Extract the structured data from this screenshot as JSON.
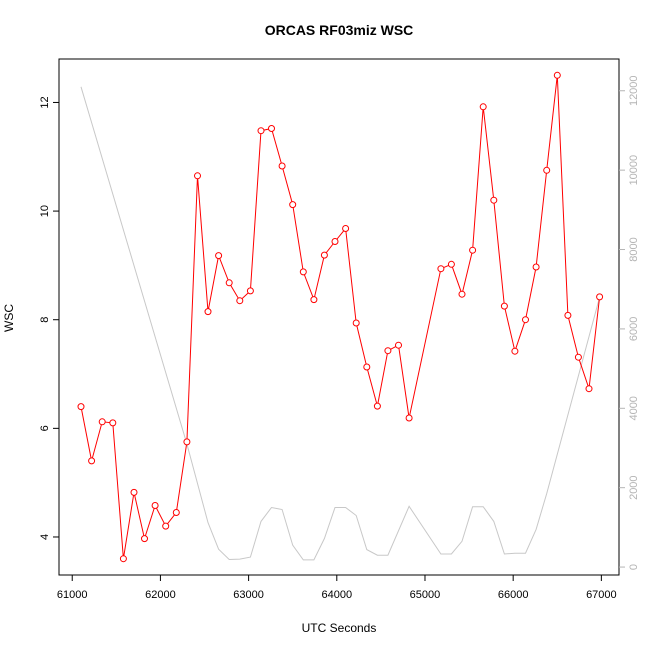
{
  "chart_data": {
    "type": "line",
    "title": "ORCAS RF03miz WSC",
    "xlabel": "UTC Seconds",
    "ylabel": "WSC",
    "xlim": [
      60850,
      67200
    ],
    "ylim": [
      3.3,
      12.8
    ],
    "y2lim": [
      -200,
      12800
    ],
    "x_ticks": [
      61000,
      62000,
      63000,
      64000,
      65000,
      66000,
      67000
    ],
    "y_ticks": [
      4,
      6,
      8,
      10,
      12
    ],
    "y2_ticks": [
      0,
      2000,
      4000,
      6000,
      8000,
      10000,
      12000
    ],
    "grid": false,
    "colors": {
      "primary": "#ff0000",
      "secondary": "#c8c8c8",
      "right_axis": "#b4b4b4"
    },
    "series": [
      {
        "axis": "left",
        "style": "line+points",
        "x": [
          61100,
          61220,
          61340,
          61460,
          61580,
          61700,
          61820,
          61940,
          62060,
          62180,
          62300,
          62420,
          62540,
          62660,
          62780,
          62900,
          63020,
          63140,
          63260,
          63380,
          63500,
          63620,
          63740,
          63860,
          63980,
          64100,
          64220,
          64340,
          64460,
          64580,
          64700,
          64820,
          65180,
          65300,
          65420,
          65540,
          65660,
          65780,
          65900,
          66020,
          66140,
          66260,
          66380,
          66500,
          66620,
          66740,
          66860,
          66980
        ],
        "y": [
          6.4,
          5.4,
          6.12,
          6.1,
          3.6,
          4.82,
          3.97,
          4.58,
          4.2,
          4.45,
          5.75,
          10.65,
          8.15,
          9.18,
          8.68,
          8.35,
          8.53,
          11.48,
          11.52,
          10.83,
          10.12,
          8.88,
          8.37,
          9.19,
          9.44,
          9.68,
          7.94,
          7.13,
          6.41,
          7.43,
          7.53,
          6.19,
          8.94,
          9.02,
          8.47,
          9.28,
          11.92,
          10.2,
          8.25,
          7.42,
          8.0,
          8.97,
          10.75,
          12.5,
          8.08,
          7.31,
          6.73,
          8.42
        ]
      },
      {
        "axis": "right",
        "style": "line",
        "x": [
          61100,
          62300,
          62540,
          62660,
          62780,
          62900,
          63020,
          63140,
          63260,
          63380,
          63500,
          63620,
          63740,
          63860,
          63980,
          64100,
          64220,
          64340,
          64460,
          64580,
          64820,
          65180,
          65300,
          65420,
          65540,
          65660,
          65780,
          65900,
          66020,
          66140,
          66260,
          66380,
          66980
        ],
        "y": [
          12100,
          3100,
          1120,
          450,
          190,
          200,
          250,
          1150,
          1500,
          1450,
          550,
          180,
          180,
          720,
          1500,
          1500,
          1300,
          440,
          300,
          300,
          1530,
          330,
          330,
          650,
          1520,
          1520,
          1150,
          330,
          350,
          350,
          950,
          1850,
          6800
        ]
      }
    ]
  }
}
